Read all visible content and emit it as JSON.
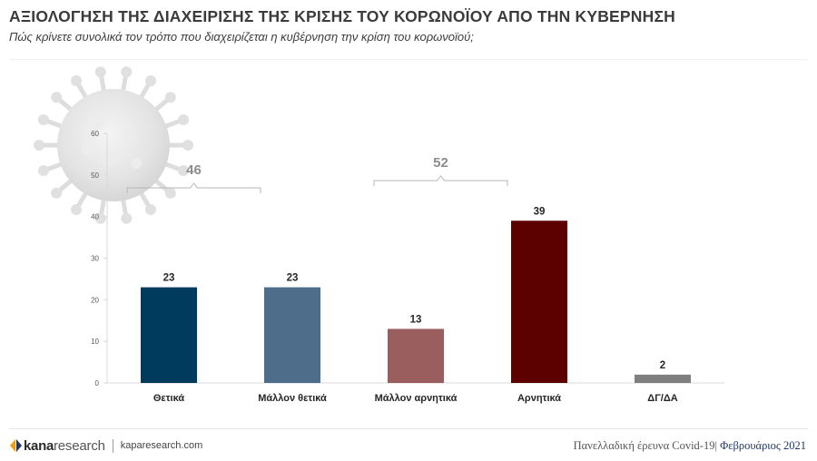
{
  "header": {
    "title": "ΑΞΙΟΛΟΓΗΣΗ ΤΗΣ ΔΙΑΧΕΙΡΙΣΗΣ ΤΗΣ ΚΡΙΣΗΣ ΤΟΥ ΚΟΡΩΝΟΪΟΥ ΑΠΟ ΤΗΝ ΚΥΒΕΡΝΗΣΗ",
    "subtitle": "Πώς κρίνετε συνολικά τον τρόπο που διαχειρίζεται η κυβέρνηση την κρίση του κορωνοϊού;"
  },
  "chart_data": {
    "type": "bar",
    "title": "",
    "xlabel": "",
    "ylabel": "",
    "ylim": [
      0,
      60
    ],
    "yticks": [
      0,
      10,
      20,
      30,
      40,
      50,
      60
    ],
    "grid": false,
    "categories": [
      "Θετικά",
      "Μάλλον θετικά",
      "Μάλλον αρνητικά",
      "Αρνητικά",
      "ΔΓ/ΔΑ"
    ],
    "values": [
      23,
      23,
      13,
      39,
      2
    ],
    "colors": [
      "#003a5d",
      "#4d6d8a",
      "#9a5e5f",
      "#5c0000",
      "#7f7f7f"
    ],
    "groups": [
      {
        "label": "46",
        "from": 0,
        "to": 1
      },
      {
        "label": "52",
        "from": 2,
        "to": 3
      }
    ]
  },
  "footer": {
    "brand_bold": "kana",
    "brand_light": "research",
    "website": "kaparesearch.com",
    "survey": "Πανελλαδική έρευνα Covid-19|",
    "date": " Φεβρουάριος 2021",
    "logo_colors": [
      "#f39c12",
      "#1f3864"
    ]
  }
}
